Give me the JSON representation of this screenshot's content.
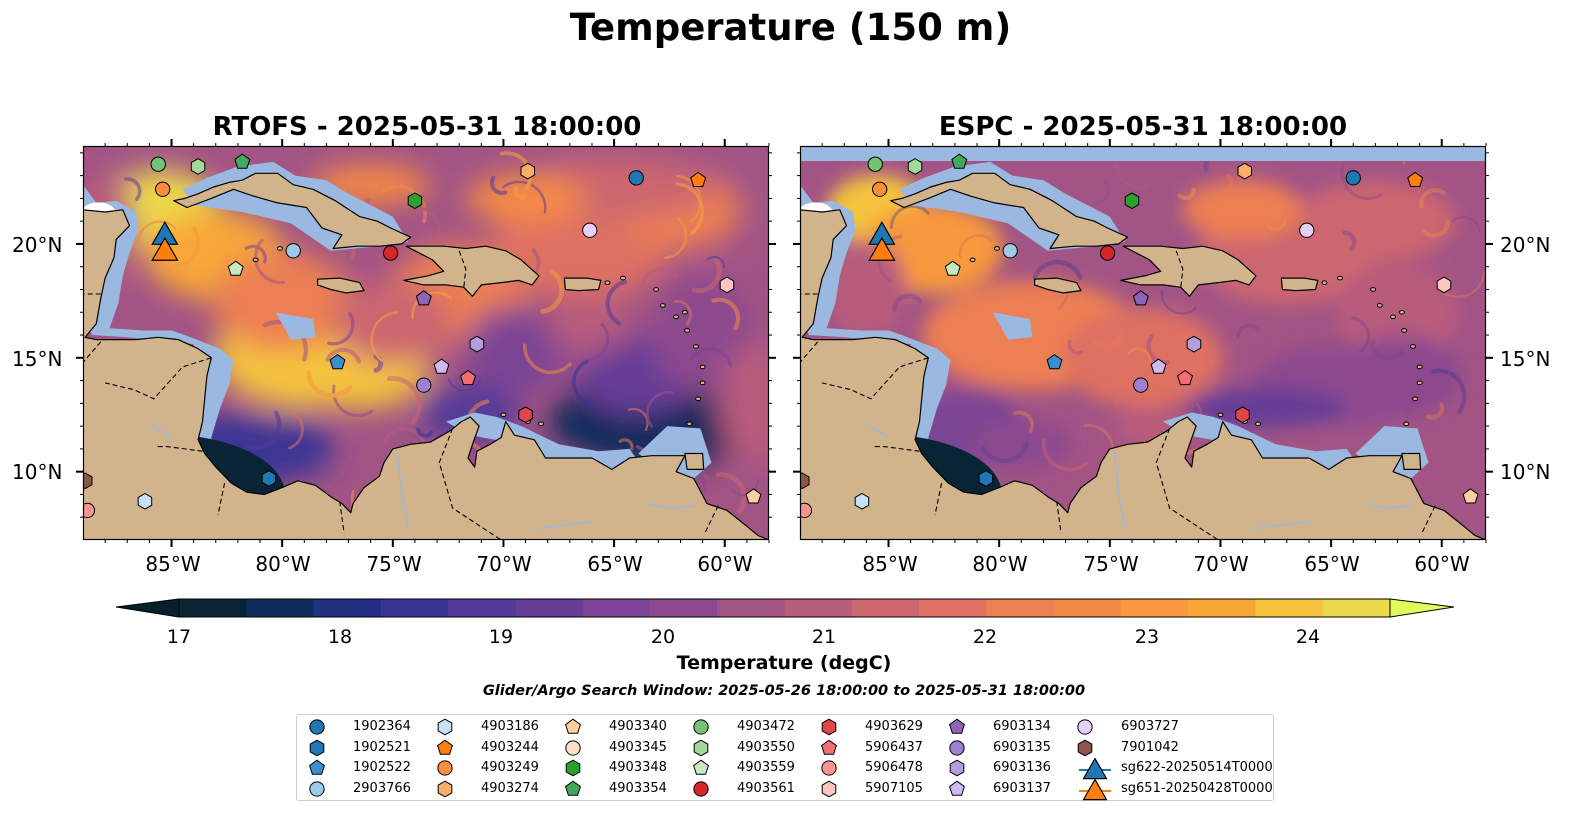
{
  "title": "Temperature (150 m)",
  "maps": [
    {
      "title": "RTOFS - 2025-05-31 18:00:00",
      "model": "rtofs"
    },
    {
      "title": "ESPC - 2025-05-31 18:00:00",
      "model": "espc"
    }
  ],
  "lat_labels": [
    "20°N",
    "15°N",
    "10°N"
  ],
  "lon_labels": [
    "85°W",
    "80°W",
    "75°W",
    "70°W",
    "65°W",
    "60°W"
  ],
  "colorbar": {
    "label": "Temperature (degC)",
    "ticks": [
      "17",
      "18",
      "19",
      "20",
      "21",
      "22",
      "23",
      "24"
    ],
    "colors": [
      "#092434",
      "#0f2c5c",
      "#232f83",
      "#3a3495",
      "#523b98",
      "#663e97",
      "#7b4494",
      "#8c4a8e",
      "#a25485",
      "#b85c7b",
      "#cc6670",
      "#de7162",
      "#ec7f53",
      "#f48a45",
      "#f7993c",
      "#f8a737",
      "#f5c33c",
      "#ebd94b"
    ],
    "under_color": "#07202b",
    "over_color": "#e4f95a"
  },
  "search_window": "Glider/Argo Search Window: 2025-05-26 18:00:00 to 2025-05-31 18:00:00",
  "legend": [
    {
      "label": "1902364",
      "marker": "circle",
      "color": "#1f77b4"
    },
    {
      "label": "1902521",
      "marker": "hexagon",
      "color": "#1f77b4"
    },
    {
      "label": "1902522",
      "marker": "pentagon",
      "color": "#3a8fd0"
    },
    {
      "label": "2903766",
      "marker": "circle",
      "color": "#9ecae9"
    },
    {
      "label": "4903186",
      "marker": "hexagon",
      "color": "#c6e3f5"
    },
    {
      "label": "4903244",
      "marker": "pentagon",
      "color": "#ff7f0e"
    },
    {
      "label": "4903249",
      "marker": "circle",
      "color": "#fd8d3c"
    },
    {
      "label": "4903274",
      "marker": "hexagon",
      "color": "#fdae6b"
    },
    {
      "label": "4903340",
      "marker": "pentagon",
      "color": "#fdd0a2"
    },
    {
      "label": "4903345",
      "marker": "circle",
      "color": "#fde0c5"
    },
    {
      "label": "4903348",
      "marker": "hexagon",
      "color": "#2ca02c"
    },
    {
      "label": "4903354",
      "marker": "pentagon",
      "color": "#41ab5d"
    },
    {
      "label": "4903472",
      "marker": "circle",
      "color": "#74c476"
    },
    {
      "label": "4903550",
      "marker": "hexagon",
      "color": "#a1d99b"
    },
    {
      "label": "4903559",
      "marker": "pentagon",
      "color": "#c7e9c0"
    },
    {
      "label": "4903561",
      "marker": "circle",
      "color": "#d62728"
    },
    {
      "label": "4903629",
      "marker": "hexagon",
      "color": "#e0474c"
    },
    {
      "label": "5906437",
      "marker": "pentagon",
      "color": "#f46d73"
    },
    {
      "label": "5906478",
      "marker": "circle",
      "color": "#f89494"
    },
    {
      "label": "5907105",
      "marker": "hexagon",
      "color": "#fcc5c0"
    },
    {
      "label": "6903134",
      "marker": "pentagon",
      "color": "#8e64b8"
    },
    {
      "label": "6903135",
      "marker": "circle",
      "color": "#9e7fd0"
    },
    {
      "label": "6903136",
      "marker": "hexagon",
      "color": "#b59ee0"
    },
    {
      "label": "6903137",
      "marker": "pentagon",
      "color": "#d0b8f0"
    },
    {
      "label": "6903727",
      "marker": "circle",
      "color": "#e5d0f8"
    },
    {
      "label": "7901042",
      "marker": "hexagon",
      "color": "#8c564b"
    },
    {
      "label": "sg622-20250514T0000",
      "marker": "triangle",
      "color": "#1f77b4"
    },
    {
      "label": "sg651-20250428T0000",
      "marker": "triangle",
      "color": "#ff7f0e"
    }
  ],
  "map_markers": [
    {
      "id": "1902364",
      "lon": -64.0,
      "lat": 22.9,
      "marker": "circle",
      "color": "#1f77b4"
    },
    {
      "id": "4903244",
      "lon": -61.2,
      "lat": 22.8,
      "marker": "pentagon",
      "color": "#ff7f0e"
    },
    {
      "id": "4903274",
      "lon": -68.9,
      "lat": 23.2,
      "marker": "hexagon",
      "color": "#fdae6b"
    },
    {
      "id": "4903249",
      "lon": -85.4,
      "lat": 22.4,
      "marker": "circle",
      "color": "#fd8d3c"
    },
    {
      "id": "4903472",
      "lon": -85.6,
      "lat": 23.5,
      "marker": "circle",
      "color": "#74c476"
    },
    {
      "id": "4903550",
      "lon": -83.8,
      "lat": 23.4,
      "marker": "hexagon",
      "color": "#a1d99b"
    },
    {
      "id": "4903354",
      "lon": -81.8,
      "lat": 23.6,
      "marker": "pentagon",
      "color": "#41ab5d"
    },
    {
      "id": "4903348",
      "lon": -74.0,
      "lat": 21.9,
      "marker": "hexagon",
      "color": "#2ca02c"
    },
    {
      "id": "2903766",
      "lon": -79.5,
      "lat": 19.7,
      "marker": "circle",
      "color": "#9ecae9"
    },
    {
      "id": "4903561",
      "lon": -75.1,
      "lat": 19.6,
      "marker": "circle",
      "color": "#d62728"
    },
    {
      "id": "6903727",
      "lon": -66.1,
      "lat": 20.6,
      "marker": "circle",
      "color": "#e5d0f8"
    },
    {
      "id": "4903559",
      "lon": -82.1,
      "lat": 18.9,
      "marker": "pentagon",
      "color": "#c7e9c0"
    },
    {
      "id": "6903134",
      "lon": -73.6,
      "lat": 17.6,
      "marker": "pentagon",
      "color": "#8e64b8"
    },
    {
      "id": "5907105",
      "lon": -59.9,
      "lat": 18.2,
      "marker": "hexagon",
      "color": "#fcc5c0"
    },
    {
      "id": "1902522",
      "lon": -77.5,
      "lat": 14.8,
      "marker": "pentagon",
      "color": "#3a8fd0"
    },
    {
      "id": "6903137",
      "lon": -72.8,
      "lat": 14.6,
      "marker": "pentagon",
      "color": "#d0b8f0"
    },
    {
      "id": "6903136",
      "lon": -71.2,
      "lat": 15.6,
      "marker": "hexagon",
      "color": "#b59ee0"
    },
    {
      "id": "5906437",
      "lon": -71.6,
      "lat": 14.1,
      "marker": "pentagon",
      "color": "#f46d73"
    },
    {
      "id": "6903135",
      "lon": -73.6,
      "lat": 13.8,
      "marker": "circle",
      "color": "#9e7fd0"
    },
    {
      "id": "4903629",
      "lon": -69.0,
      "lat": 12.5,
      "marker": "hexagon",
      "color": "#e0474c"
    },
    {
      "id": "4903186",
      "lon": -86.2,
      "lat": 8.7,
      "marker": "hexagon",
      "color": "#c6e3f5"
    },
    {
      "id": "5906478",
      "lon": -88.8,
      "lat": 8.3,
      "marker": "circle",
      "color": "#f89494"
    },
    {
      "id": "7901042",
      "lon": -88.9,
      "lat": 9.6,
      "marker": "hexagon",
      "color": "#8c564b"
    },
    {
      "id": "1902521",
      "lon": -80.6,
      "lat": 9.7,
      "marker": "hexagon",
      "color": "#1f77b4"
    },
    {
      "id": "4903340",
      "lon": -58.7,
      "lat": 8.9,
      "marker": "pentagon",
      "color": "#fdd0a2"
    },
    {
      "id": "sg622-20250514T0000",
      "lon": -85.3,
      "lat": 20.4,
      "marker": "triangle",
      "color": "#1f77b4"
    },
    {
      "id": "sg651-20250428T0000",
      "lon": -85.3,
      "lat": 19.7,
      "marker": "triangle",
      "color": "#ff7f0e"
    }
  ]
}
